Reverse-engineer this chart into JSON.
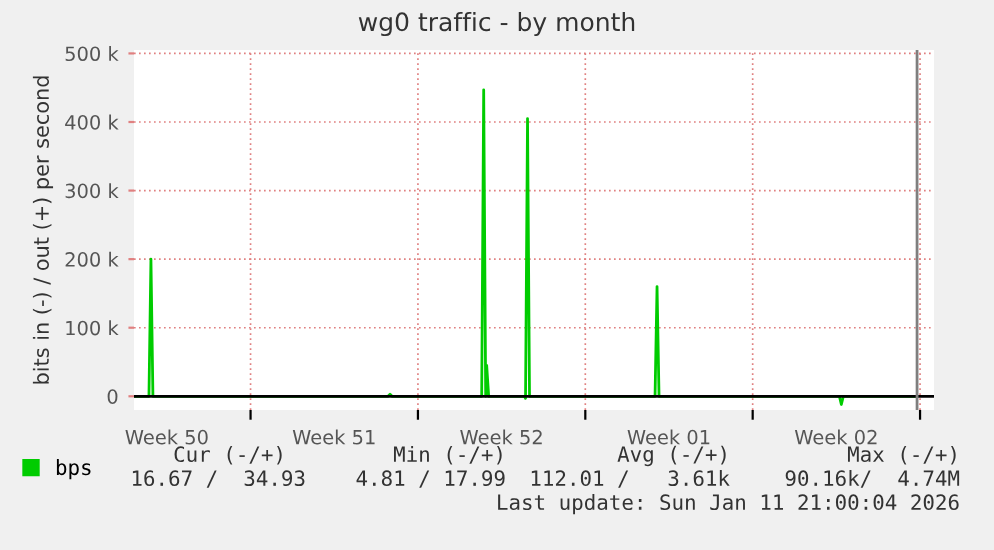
{
  "chart_data": {
    "type": "line",
    "title": "wg0 traffic - by month",
    "ylabel": "bits in (-) / out (+) per second",
    "x": [
      "2025-12-10T04:00",
      "2025-12-10T18:00",
      "2025-12-10T20:00",
      "2025-12-10T22:00",
      "2025-12-20T18:00",
      "2025-12-20T20:00",
      "2025-12-20T22:00",
      "2025-12-24T16:00",
      "2025-12-24T18:00",
      "2025-12-24T20:00",
      "2025-12-24T21:00",
      "2025-12-24T23:00",
      "2025-12-26T11:00",
      "2025-12-26T12:00",
      "2025-12-26T14:00",
      "2025-12-26T16:00",
      "2025-12-31T22:00",
      "2026-01-01T00:00",
      "2026-01-01T02:00",
      "2026-01-08T15:00",
      "2026-01-08T17:00",
      "2026-01-08T19:00",
      "2026-01-11T21:00"
    ],
    "series": [
      {
        "name": "bps",
        "color": "#00cc00",
        "values": [
          0,
          0,
          200000,
          0,
          0,
          3000,
          0,
          0,
          447000,
          0,
          45000,
          0,
          0,
          -3000,
          405000,
          0,
          0,
          160000,
          0,
          0,
          -12000,
          0,
          0
        ]
      }
    ],
    "xlim": [
      "2025-12-10T03:00",
      "2026-01-12T14:00"
    ],
    "xticks": [
      {
        "value": "2025-12-11T12:00",
        "label": "Week 50"
      },
      {
        "value": "2025-12-15T00:00",
        "label": null
      },
      {
        "value": "2025-12-18T12:00",
        "label": "Week 51"
      },
      {
        "value": "2025-12-22T00:00",
        "label": null
      },
      {
        "value": "2025-12-25T12:00",
        "label": "Week 52"
      },
      {
        "value": "2025-12-29T00:00",
        "label": null
      },
      {
        "value": "2026-01-01T12:00",
        "label": "Week 01"
      },
      {
        "value": "2026-01-05T00:00",
        "label": null
      },
      {
        "value": "2026-01-08T12:00",
        "label": "Week 02"
      },
      {
        "value": "2026-01-12T00:00",
        "label": null
      }
    ],
    "ylim": [
      -20000,
      505000
    ],
    "yticks": [
      0,
      {
        "value": 100000,
        "label": "100 k"
      },
      {
        "value": 200000,
        "label": "200 k"
      },
      {
        "value": 300000,
        "label": "300 k"
      },
      {
        "value": 400000,
        "label": "400 k"
      },
      {
        "value": 500000,
        "label": "500 k"
      }
    ],
    "ref_lines": [
      {
        "axis": "y",
        "value": 0,
        "color": "#000000"
      },
      {
        "axis": "x",
        "value": "2026-01-11T21:00",
        "color": "#7f7f7f"
      }
    ],
    "grid": true,
    "legend": "bottom left",
    "annotations": [
      "Cur (-/+)",
      "Min (-/+)",
      "Avg (-/+)",
      "Max (-/+)",
      "16.67 /  34.93",
      "4.81 / 17.99",
      "112.01 /   3.61k",
      "90.16k/  4.74M",
      "Last update: Sun Jan 11 21:00:04 2026"
    ]
  }
}
